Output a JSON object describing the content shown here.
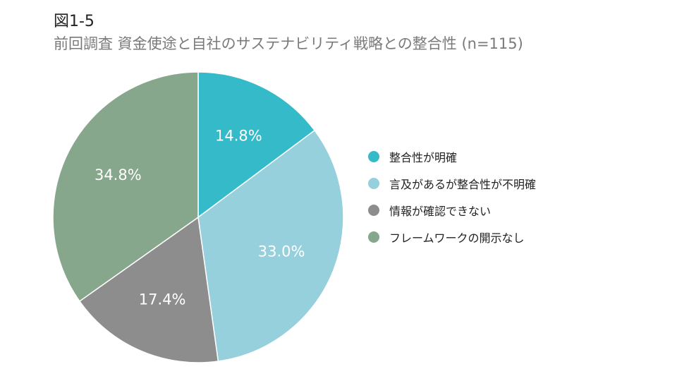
{
  "figure": {
    "label": "図1-5",
    "title": "前回調査 資金使途と自社のサステナビリティ戦略との整合性 (n=115)"
  },
  "chart_data": {
    "type": "pie",
    "title": "前回調査 資金使途と自社のサステナビリティ戦略との整合性 (n=115)",
    "start_angle_deg": 0,
    "direction": "clockwise",
    "legend_position": "right",
    "slices": [
      {
        "name": "整合性が明確",
        "value": 14.8,
        "label": "14.8%",
        "color": "#34bac9"
      },
      {
        "name": "言及があるが整合性が不明確",
        "value": 33.0,
        "label": "33.0%",
        "color": "#96d0dc"
      },
      {
        "name": "情報が確認できない",
        "value": 17.4,
        "label": "17.4%",
        "color": "#8d8d8d"
      },
      {
        "name": "フレームワークの開示なし",
        "value": 34.8,
        "label": "34.8%",
        "color": "#87a78c"
      }
    ]
  }
}
